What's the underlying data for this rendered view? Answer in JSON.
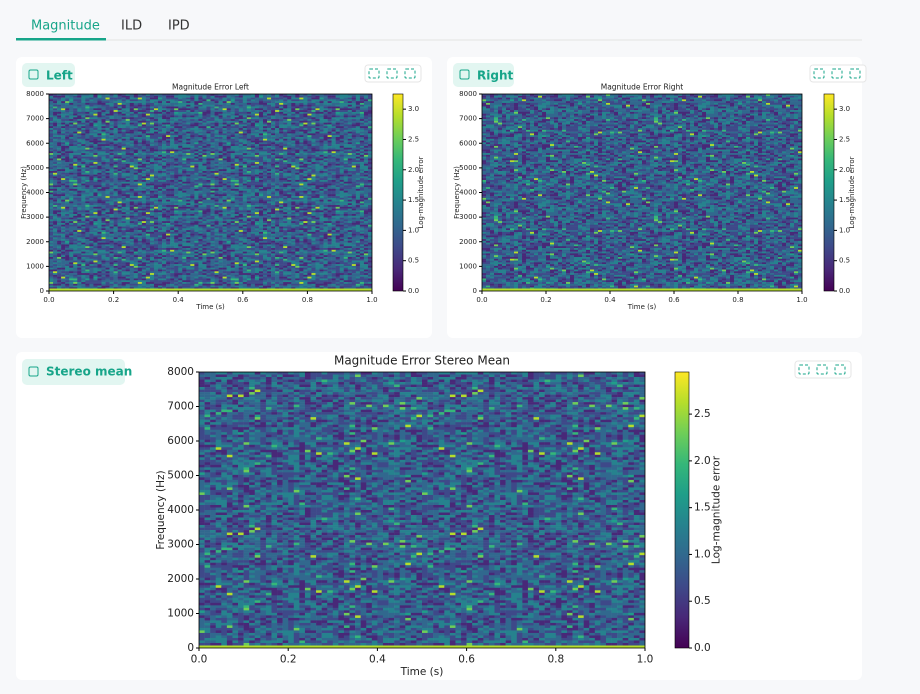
{
  "tabs": [
    "Magnitude",
    "ILD",
    "IPD"
  ],
  "active_tab": 0,
  "panels": [
    "Left",
    "Right",
    "Stereo mean"
  ],
  "chart_data": [
    {
      "type": "heatmap",
      "title": "Magnitude Error Left",
      "xlabel": "Time (s)",
      "ylabel": "Frequency (Hz)",
      "colorbar_label": "Log-magnitude error",
      "colormap": "viridis",
      "xlim": [
        0,
        1
      ],
      "xticks": [
        {
          "value": 0,
          "label": "0.0"
        },
        0.2,
        0.4,
        0.6,
        0.8,
        {
          "value": 1,
          "label": "1.0"
        }
      ],
      "ylim": [
        0,
        8000
      ],
      "yticks": [
        0,
        1000,
        2000,
        3000,
        4000,
        5000,
        6000,
        7000,
        8000
      ],
      "clim": [
        0,
        3.25
      ],
      "cticks": [
        {
          "value": 0,
          "label": "0.0"
        },
        0.5,
        {
          "value": 1,
          "label": "1.0"
        },
        1.5,
        {
          "value": 2,
          "label": "2.0"
        },
        2.5,
        {
          "value": 3,
          "label": "3.0"
        }
      ]
    },
    {
      "type": "heatmap",
      "title": "Magnitude Error Right",
      "xlabel": "Time (s)",
      "ylabel": "Frequency (Hz)",
      "colorbar_label": "Log-magnitude error",
      "colormap": "viridis",
      "xlim": [
        0,
        1
      ],
      "xticks": [
        {
          "value": 0,
          "label": "0.0"
        },
        0.2,
        0.4,
        0.6,
        0.8,
        {
          "value": 1,
          "label": "1.0"
        }
      ],
      "ylim": [
        0,
        8000
      ],
      "yticks": [
        0,
        1000,
        2000,
        3000,
        4000,
        5000,
        6000,
        7000,
        8000
      ],
      "clim": [
        0,
        3.25
      ],
      "cticks": [
        {
          "value": 0,
          "label": "0.0"
        },
        0.5,
        {
          "value": 1,
          "label": "1.0"
        },
        1.5,
        {
          "value": 2,
          "label": "2.0"
        },
        2.5,
        {
          "value": 3,
          "label": "3.0"
        }
      ]
    },
    {
      "type": "heatmap",
      "title": "Magnitude Error Stereo Mean",
      "xlabel": "Time (s)",
      "ylabel": "Frequency (Hz)",
      "colorbar_label": "Log-magnitude error",
      "colormap": "viridis",
      "xlim": [
        0,
        1
      ],
      "xticks": [
        {
          "value": 0,
          "label": "0.0"
        },
        0.2,
        0.4,
        0.6,
        0.8,
        {
          "value": 1,
          "label": "1.0"
        }
      ],
      "ylim": [
        0,
        8000
      ],
      "yticks": [
        0,
        1000,
        2000,
        3000,
        4000,
        5000,
        6000,
        7000,
        8000
      ],
      "clim": [
        0,
        2.95
      ],
      "cticks": [
        {
          "value": 0,
          "label": "0.0"
        },
        0.5,
        {
          "value": 1,
          "label": "1.0"
        },
        1.5,
        {
          "value": 2,
          "label": "2.0"
        },
        2.5
      ]
    }
  ]
}
